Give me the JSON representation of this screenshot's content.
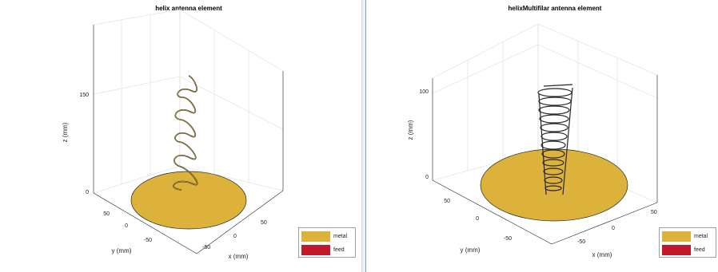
{
  "colors": {
    "metal": "#DDB23B",
    "feed": "#C1192B",
    "helix": "#262626",
    "background": "#F0F0F0"
  },
  "left_plot": {
    "title": "helix antenna element",
    "zlabel": "z (mm)",
    "ylabel": "y (mm)",
    "xlabel": "x (mm)",
    "z_ticks": [
      "150",
      "0"
    ],
    "y_ticks": [
      "50",
      "0",
      "-50"
    ],
    "x_ticks": [
      "50",
      "0",
      "-50"
    ],
    "legend": {
      "metal": "metal",
      "feed": "feed"
    }
  },
  "right_plot": {
    "title": "helixMultifilar antenna element",
    "zlabel": "z (mm)",
    "ylabel": "y (mm)",
    "xlabel": "x (mm)",
    "z_ticks": [
      "100",
      "0"
    ],
    "y_ticks": [
      "50",
      "0",
      "-50"
    ],
    "x_ticks": [
      "50",
      "0",
      "-50"
    ],
    "legend": {
      "metal": "metal",
      "feed": "feed"
    }
  }
}
